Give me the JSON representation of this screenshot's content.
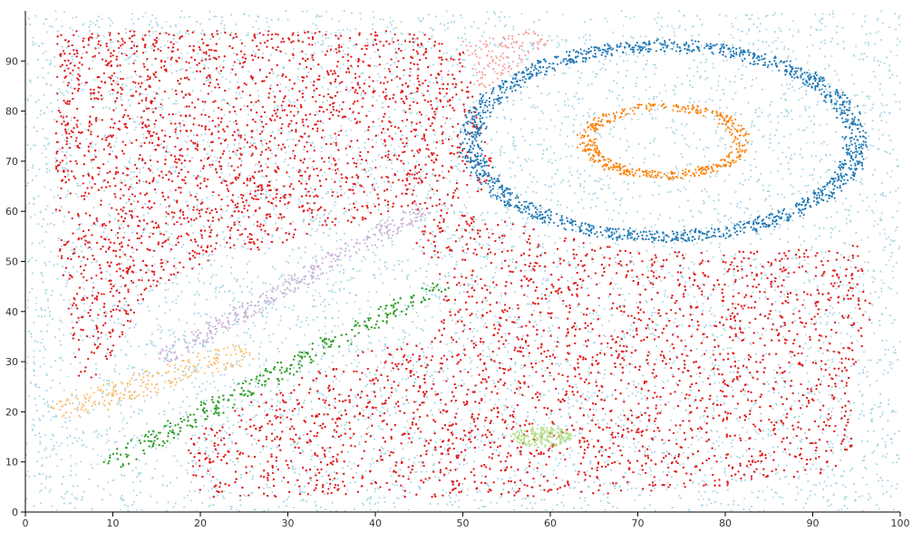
{
  "chart_data": {
    "type": "scatter",
    "title": "",
    "xlabel": "",
    "ylabel": "",
    "xlim": [
      0,
      100
    ],
    "ylim": [
      0,
      100
    ],
    "x_ticks": [
      0,
      10,
      20,
      30,
      40,
      50,
      60,
      70,
      80,
      90,
      100
    ],
    "y_ticks": [
      0,
      10,
      20,
      30,
      40,
      50,
      60,
      70,
      80,
      90
    ],
    "x_tick_labels": [
      "0",
      "10",
      "20",
      "30",
      "40",
      "50",
      "60",
      "70",
      "80",
      "90",
      "100"
    ],
    "y_tick_labels": [
      "0",
      "10",
      "20",
      "30",
      "40",
      "50",
      "60",
      "70",
      "80",
      "90"
    ],
    "grid": false,
    "legend": "none",
    "clusters": [
      {
        "id": "background",
        "color": "#add8e6",
        "shape": "rect",
        "x_range": [
          0,
          100
        ],
        "y_range": [
          0,
          100
        ],
        "density": 0.9
      },
      {
        "id": "red-top-left",
        "color": "#e31a1c",
        "shape": "polygon",
        "points": [
          [
            3.5,
            96
          ],
          [
            45,
            96
          ],
          [
            50,
            92
          ],
          [
            52,
            78
          ],
          [
            54,
            66
          ],
          [
            48,
            60
          ],
          [
            42,
            60
          ],
          [
            20,
            49
          ],
          [
            14,
            44
          ],
          [
            8,
            26
          ],
          [
            6,
            26
          ],
          [
            5,
            40
          ],
          [
            3.5,
            56
          ]
        ],
        "density": 1.0
      },
      {
        "id": "red-bottom-right",
        "color": "#e31a1c",
        "shape": "polygon",
        "points": [
          [
            48,
            60
          ],
          [
            55,
            58
          ],
          [
            70,
            52
          ],
          [
            85,
            52
          ],
          [
            95,
            54
          ],
          [
            97,
            38
          ],
          [
            94,
            26
          ],
          [
            95,
            10
          ],
          [
            88,
            6
          ],
          [
            60,
            3
          ],
          [
            20,
            3
          ],
          [
            18,
            14
          ],
          [
            25,
            22
          ],
          [
            40,
            33
          ],
          [
            47,
            36
          ],
          [
            48,
            46
          ],
          [
            44,
            55
          ]
        ],
        "density": 1.0
      },
      {
        "id": "blue-ring",
        "color": "#1f78b4",
        "shape": "ring",
        "center": [
          73,
          74
        ],
        "radii": [
          22,
          19
        ],
        "thickness": 2.6,
        "density": 1.0
      },
      {
        "id": "orange-ring",
        "color": "#ff7f00",
        "shape": "ring",
        "center": [
          73,
          74
        ],
        "radii": [
          8.8,
          6.8
        ],
        "thickness": 1.8,
        "density": 1.0
      },
      {
        "id": "pink",
        "color": "#fb9a99",
        "shape": "polygon",
        "points": [
          [
            50,
            94
          ],
          [
            58,
            96
          ],
          [
            60,
            94
          ],
          [
            54,
            86
          ],
          [
            52,
            84
          ]
        ],
        "density": 0.7
      },
      {
        "id": "purple-band",
        "color": "#cab2d6",
        "shape": "band",
        "from": [
          16,
          31
        ],
        "to": [
          45,
          60
        ],
        "width": 1.6,
        "density": 0.9
      },
      {
        "id": "green-band",
        "color": "#33a02c",
        "shape": "band",
        "from": [
          10,
          10
        ],
        "to": [
          47,
          45
        ],
        "width": 1.8,
        "density": 1.0
      },
      {
        "id": "light-orange-band",
        "color": "#fdbf6f",
        "shape": "band",
        "from": [
          4,
          20
        ],
        "to": [
          25,
          32
        ],
        "width": 2.5,
        "density": 0.7
      },
      {
        "id": "light-green-ellipse",
        "color": "#b2df8a",
        "shape": "ellipse",
        "center": [
          59,
          15
        ],
        "radii": [
          3.5,
          2.0
        ],
        "density": 1.0
      }
    ]
  }
}
